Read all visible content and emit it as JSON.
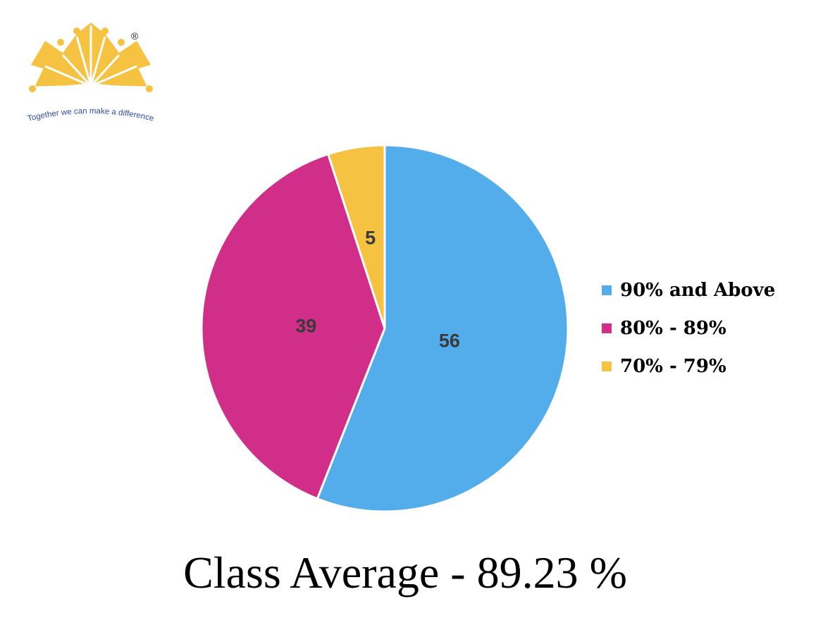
{
  "logo": {
    "tagline": "Together we can make a difference",
    "registered_mark": "®",
    "icon": "crown-sunburst-logo",
    "color": "#F5C242"
  },
  "chart_data": {
    "type": "pie",
    "categories": [
      "90% and Above",
      "80% - 89%",
      "70% - 79%"
    ],
    "values": [
      56,
      39,
      5
    ],
    "data_labels": [
      "56",
      "39",
      "5"
    ],
    "colors": [
      "#52ADEA",
      "#D12E89",
      "#F5C242"
    ],
    "legend": [
      "90% and Above",
      "80% - 89%",
      "70% - 79%"
    ],
    "legend_placement": "right",
    "title": "",
    "start_angle": "12 o'clock, clockwise"
  },
  "caption": "Class Average - 89.23 %"
}
